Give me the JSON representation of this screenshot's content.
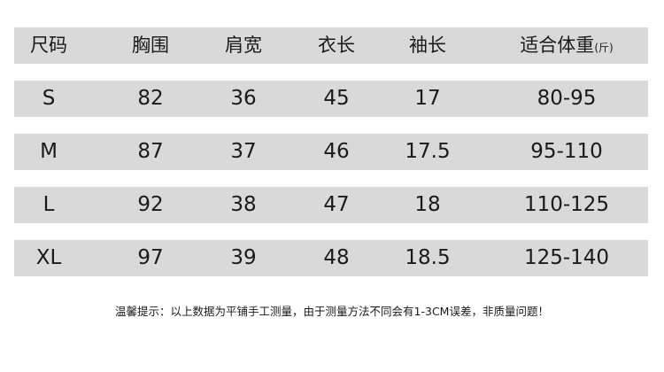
{
  "header": {
    "cols": [
      "尺码",
      "胸围",
      "肩宽",
      "衣长",
      "袖长",
      "适合体重"
    ],
    "weight_unit": "(斤)"
  },
  "rows": [
    [
      "S",
      "82",
      "36",
      "45",
      "17",
      "80-95"
    ],
    [
      "M",
      "87",
      "37",
      "46",
      "17.5",
      "95-110"
    ],
    [
      "L",
      "92",
      "38",
      "47",
      "18",
      "110-125"
    ],
    [
      "XL",
      "97",
      "39",
      "48",
      "18.5",
      "125-140"
    ]
  ],
  "note": "温馨提示：以上数据为平铺手工测量，由于测量方法不同会有1-3CM误差，非质量问题！"
}
